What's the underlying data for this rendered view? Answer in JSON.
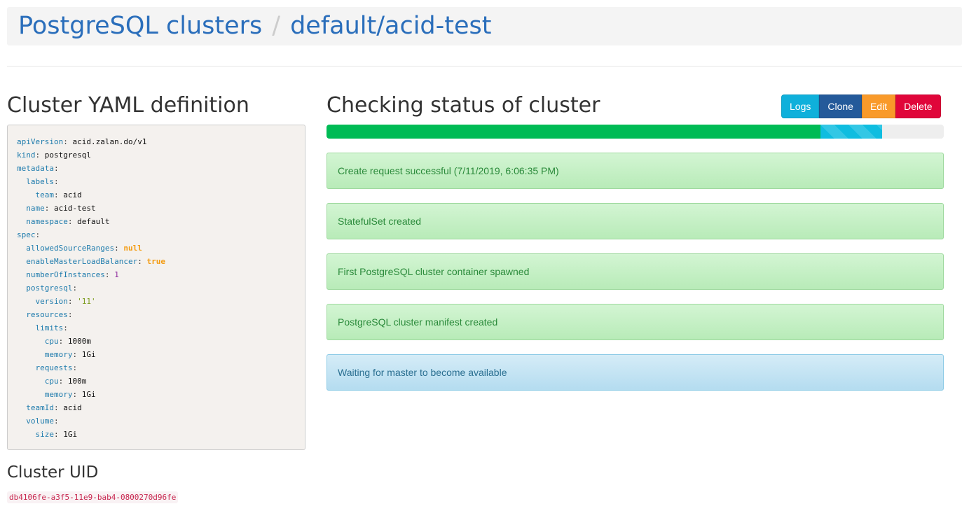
{
  "breadcrumb": {
    "root": "PostgreSQL clusters",
    "separator": "/",
    "current": "default/acid-test"
  },
  "yaml_title": "Cluster YAML definition",
  "yaml_lines": [
    {
      "indent": 0,
      "key": "apiVersion",
      "value": "acid.zalan.do/v1",
      "type": "s"
    },
    {
      "indent": 0,
      "key": "kind",
      "value": "postgresql",
      "type": "s"
    },
    {
      "indent": 0,
      "key": "metadata",
      "value": "",
      "type": "s"
    },
    {
      "indent": 1,
      "key": "labels",
      "value": "",
      "type": "s"
    },
    {
      "indent": 2,
      "key": "team",
      "value": "acid",
      "type": "s"
    },
    {
      "indent": 1,
      "key": "name",
      "value": "acid-test",
      "type": "s"
    },
    {
      "indent": 1,
      "key": "namespace",
      "value": "default",
      "type": "s"
    },
    {
      "indent": 0,
      "key": "spec",
      "value": "",
      "type": "s"
    },
    {
      "indent": 1,
      "key": "allowedSourceRanges",
      "value": "null",
      "type": "b"
    },
    {
      "indent": 1,
      "key": "enableMasterLoadBalancer",
      "value": "true",
      "type": "b"
    },
    {
      "indent": 1,
      "key": "numberOfInstances",
      "value": "1",
      "type": "n"
    },
    {
      "indent": 1,
      "key": "postgresql",
      "value": "",
      "type": "s"
    },
    {
      "indent": 2,
      "key": "version",
      "value": "'11'",
      "type": "q"
    },
    {
      "indent": 1,
      "key": "resources",
      "value": "",
      "type": "s"
    },
    {
      "indent": 2,
      "key": "limits",
      "value": "",
      "type": "s"
    },
    {
      "indent": 3,
      "key": "cpu",
      "value": "1000m",
      "type": "s"
    },
    {
      "indent": 3,
      "key": "memory",
      "value": "1Gi",
      "type": "s"
    },
    {
      "indent": 2,
      "key": "requests",
      "value": "",
      "type": "s"
    },
    {
      "indent": 3,
      "key": "cpu",
      "value": "100m",
      "type": "s"
    },
    {
      "indent": 3,
      "key": "memory",
      "value": "1Gi",
      "type": "s"
    },
    {
      "indent": 1,
      "key": "teamId",
      "value": "acid",
      "type": "s"
    },
    {
      "indent": 1,
      "key": "volume",
      "value": "",
      "type": "s"
    },
    {
      "indent": 2,
      "key": "size",
      "value": "1Gi",
      "type": "s"
    }
  ],
  "uid_title": "Cluster UID",
  "uid": "db4106fe-a3f5-11e9-bab4-0800270d96fe",
  "status_title": "Checking status of cluster",
  "buttons": [
    {
      "label": "Logs",
      "color": "#0fb0db"
    },
    {
      "label": "Clone",
      "color": "#245a9a"
    },
    {
      "label": "Edit",
      "color": "#f99a2a"
    },
    {
      "label": "Delete",
      "color": "#e0063a"
    }
  ],
  "progress": {
    "success_percent": 80,
    "in_progress_percent": 10
  },
  "alerts": [
    {
      "text": "Create request successful (7/11/2019, 6:06:35 PM)",
      "kind": "success"
    },
    {
      "text": "StatefulSet created",
      "kind": "success"
    },
    {
      "text": "First PostgreSQL cluster container spawned",
      "kind": "success"
    },
    {
      "text": "PostgreSQL cluster manifest created",
      "kind": "success"
    },
    {
      "text": "Waiting for master to become available",
      "kind": "info"
    }
  ]
}
